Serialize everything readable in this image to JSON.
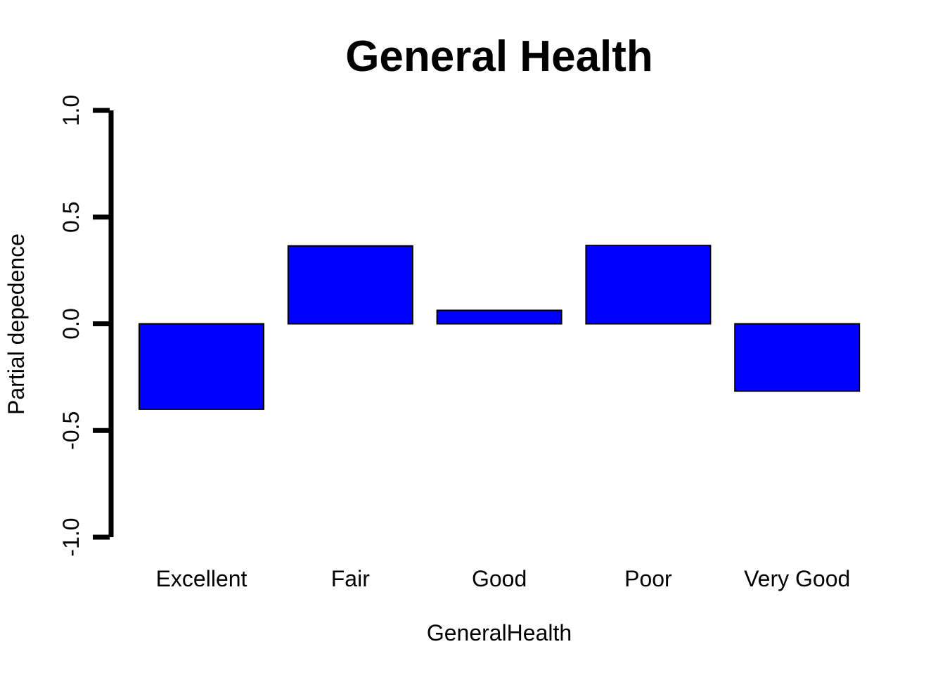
{
  "chart_data": {
    "type": "bar",
    "title": "General Health",
    "xlabel": "GeneralHealth",
    "ylabel": "Partial depedence",
    "categories": [
      "Excellent",
      "Fair",
      "Good",
      "Poor",
      "Very Good"
    ],
    "values": [
      -0.4,
      0.365,
      0.063,
      0.367,
      -0.315
    ],
    "ylim": [
      -1.0,
      1.0
    ],
    "yticks": [
      "-1.0",
      "-0.5",
      "0.0",
      "0.5",
      "1.0"
    ],
    "ytick_values": [
      -1.0,
      -0.5,
      0.0,
      0.5,
      1.0
    ],
    "bar_color": "#0000ff",
    "bar_edge_color": "#000000",
    "grid": false,
    "legend": "none"
  }
}
